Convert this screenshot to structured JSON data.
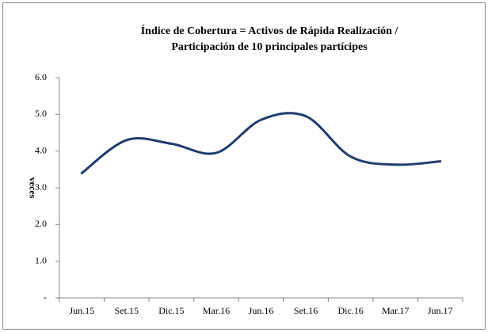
{
  "chart_data": {
    "type": "line",
    "title": [
      "Índice de Cobertura = Activos de Rápida Realización /",
      "Participación de 10 principales partícipes"
    ],
    "y_label": "veces",
    "categories": [
      "Jun.15",
      "Set.15",
      "Dic.15",
      "Mar.16",
      "Jun.16",
      "Set.16",
      "Dic.16",
      "Mar.17",
      "Jun.17"
    ],
    "values": [
      3.4,
      4.3,
      4.2,
      3.95,
      4.85,
      4.95,
      3.85,
      3.63,
      3.72
    ],
    "color": "#1f3d6e",
    "smooth": true,
    "ylim": [
      0,
      6
    ],
    "yticks": [
      {
        "value": 0,
        "label": "-"
      },
      {
        "value": 1,
        "label": "1.0"
      },
      {
        "value": 2,
        "label": "2.0"
      },
      {
        "value": 3,
        "label": "3.0"
      },
      {
        "value": 4,
        "label": "4.0"
      },
      {
        "value": 5,
        "label": "5.0"
      },
      {
        "value": 6,
        "label": "6.0"
      }
    ],
    "grid": false
  }
}
